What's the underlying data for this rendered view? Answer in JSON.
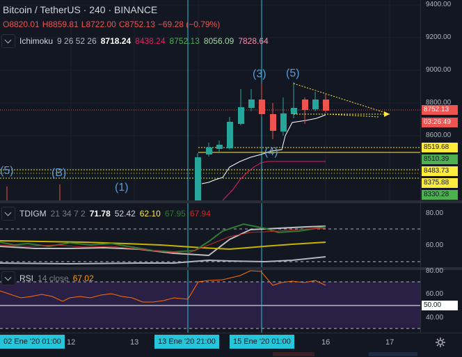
{
  "header": {
    "symbol_title": "Bitcoin / TetherUS · 240 · BINANCE",
    "ohlc": {
      "open": "O8820.01",
      "high": "H8859.81",
      "low": "L8722.00",
      "close": "C8752.13",
      "change": "−69.28 (−0.79%)"
    }
  },
  "ichimoku": {
    "name": "Ichimoku",
    "params": "9 26 52 26",
    "values": [
      "8718.24",
      "8438.24",
      "8752.13",
      "8056.09",
      "7828.64"
    ]
  },
  "tdigm": {
    "name": "TDIGM",
    "params": "21 34 7 2",
    "values": [
      "71.78",
      "52.42",
      "62.10",
      "67.95",
      "67.94"
    ]
  },
  "rsi": {
    "name": "RSI",
    "params": "14 close",
    "value": "67.02"
  },
  "price_axis": {
    "ticks": [
      "9400.00",
      "9200.00",
      "9000.00",
      "8800.00",
      "8600.00"
    ],
    "last_price": "8752.13",
    "countdown": "03:26:49",
    "levels": [
      "8519.68",
      "8510.39",
      "8483.73",
      "8375.88",
      "8330.28"
    ]
  },
  "tdigm_axis": {
    "ticks": [
      "80.00",
      "60.00"
    ]
  },
  "rsi_axis": {
    "ticks": [
      "80.00",
      "60.00",
      "50.00",
      "40.00"
    ]
  },
  "wave_labels": [
    "(5)",
    "(B)",
    "(1)",
    "(3)",
    "(5)",
    "(4)"
  ],
  "time_axis": {
    "highlight_left": "02 Ene '20   01:00",
    "ticks": [
      "12",
      "13",
      "16",
      "17"
    ],
    "highlight_mid": "13 Ene '20   21:00",
    "highlight_right": "15 Ene '20   01:00"
  },
  "colors": {
    "background": "#131722",
    "up": "#26a69a",
    "down": "#ef5350",
    "cyan": "#26c6da",
    "yellow": "#ffeb3b",
    "green": "#4caf50"
  }
}
